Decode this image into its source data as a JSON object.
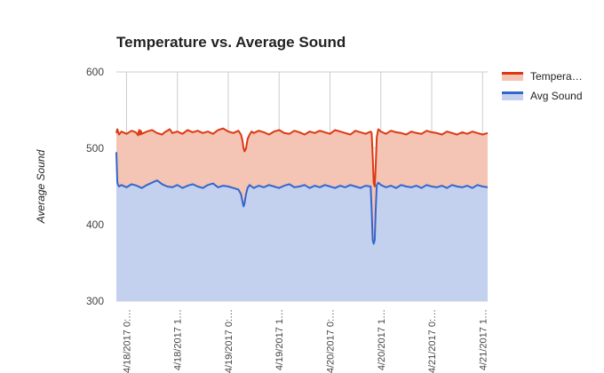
{
  "chart_data": {
    "type": "area",
    "title": "Temperature vs. Average Sound",
    "xlabel": "",
    "ylabel": "Average Sound",
    "ylim": [
      300,
      600
    ],
    "yticks": [
      "600",
      "500",
      "400",
      "300"
    ],
    "xticks": [
      "4/18/2017 0:…",
      "4/18/2017 1…",
      "4/19/2017 0:…",
      "4/19/2017 1…",
      "4/20/2017 0:…",
      "4/20/2017 1…",
      "4/21/2017 0:…",
      "4/21/2017 1…"
    ],
    "grid": true,
    "legend_position": "right",
    "series": [
      {
        "name": "Tempera…",
        "color": "#dc3912",
        "fill": "#f4c4b4",
        "x": [
          0,
          0.02,
          0.05,
          0.1,
          0.2,
          0.3,
          0.38,
          0.43,
          0.44,
          0.45,
          0.46,
          0.47,
          0.48,
          0.49,
          0.5,
          0.6,
          0.7,
          0.8,
          0.9,
          0.95,
          1.0,
          1.05,
          1.1,
          1.2,
          1.3,
          1.4,
          1.5,
          1.6,
          1.7,
          1.8,
          1.9,
          2.0,
          2.1,
          2.2,
          2.3,
          2.4,
          2.45,
          2.48,
          2.5,
          2.52,
          2.55,
          2.58,
          2.62,
          2.66,
          2.7,
          2.8,
          2.9,
          3.0,
          3.1,
          3.2,
          3.3,
          3.4,
          3.5,
          3.6,
          3.7,
          3.8,
          3.9,
          4.0,
          4.1,
          4.2,
          4.3,
          4.4,
          4.5,
          4.6,
          4.7,
          4.8,
          4.9,
          5.0,
          5.02,
          5.04,
          5.06,
          5.08,
          5.1,
          5.12,
          5.15,
          5.2,
          5.3,
          5.4,
          5.5,
          5.6,
          5.7,
          5.8,
          5.9,
          6.0,
          6.1,
          6.2,
          6.3,
          6.4,
          6.5,
          6.6,
          6.7,
          6.8,
          6.9,
          7.0,
          7.1,
          7.2,
          7.3
        ],
        "values": [
          520,
          525,
          518,
          522,
          519,
          523,
          521,
          517,
          522,
          524,
          520,
          518,
          523,
          521,
          519,
          522,
          524,
          520,
          518,
          521,
          523,
          525,
          520,
          522,
          519,
          524,
          521,
          523,
          520,
          522,
          519,
          524,
          526,
          522,
          520,
          523,
          518,
          510,
          500,
          496,
          500,
          512,
          518,
          522,
          520,
          523,
          521,
          518,
          522,
          524,
          520,
          519,
          523,
          521,
          518,
          522,
          520,
          523,
          521,
          519,
          524,
          522,
          520,
          518,
          523,
          521,
          519,
          522,
          520,
          490,
          455,
          450,
          478,
          515,
          525,
          522,
          519,
          523,
          521,
          520,
          518,
          522,
          520,
          519,
          523,
          521,
          520,
          518,
          522,
          520,
          518,
          521,
          519,
          522,
          520,
          518,
          520
        ]
      },
      {
        "name": "Avg Sound",
        "color": "#3366cc",
        "fill": "#c3d1ef",
        "x": [
          0,
          0.02,
          0.05,
          0.1,
          0.2,
          0.3,
          0.4,
          0.5,
          0.6,
          0.7,
          0.8,
          0.9,
          1.0,
          1.1,
          1.2,
          1.3,
          1.4,
          1.5,
          1.6,
          1.7,
          1.8,
          1.9,
          2.0,
          2.1,
          2.2,
          2.3,
          2.4,
          2.45,
          2.48,
          2.5,
          2.52,
          2.55,
          2.58,
          2.62,
          2.66,
          2.7,
          2.8,
          2.9,
          3.0,
          3.1,
          3.2,
          3.3,
          3.4,
          3.5,
          3.6,
          3.7,
          3.8,
          3.9,
          4.0,
          4.1,
          4.2,
          4.3,
          4.4,
          4.5,
          4.6,
          4.7,
          4.8,
          4.9,
          5.0,
          5.02,
          5.04,
          5.06,
          5.08,
          5.1,
          5.12,
          5.15,
          5.2,
          5.3,
          5.4,
          5.5,
          5.6,
          5.7,
          5.8,
          5.9,
          6.0,
          6.1,
          6.2,
          6.3,
          6.4,
          6.5,
          6.6,
          6.7,
          6.8,
          6.9,
          7.0,
          7.1,
          7.2,
          7.3
        ],
        "values": [
          495,
          455,
          450,
          452,
          449,
          453,
          451,
          448,
          452,
          455,
          458,
          453,
          450,
          449,
          452,
          448,
          451,
          453,
          450,
          448,
          452,
          454,
          449,
          451,
          450,
          448,
          446,
          440,
          430,
          424,
          428,
          440,
          448,
          452,
          450,
          448,
          451,
          449,
          452,
          450,
          448,
          451,
          453,
          449,
          450,
          452,
          448,
          451,
          449,
          452,
          450,
          448,
          451,
          449,
          452,
          450,
          448,
          451,
          450,
          420,
          380,
          375,
          380,
          420,
          452,
          455,
          452,
          449,
          451,
          448,
          452,
          450,
          449,
          451,
          448,
          452,
          450,
          449,
          451,
          448,
          452,
          450,
          449,
          451,
          448,
          452,
          450,
          449
        ]
      }
    ]
  }
}
